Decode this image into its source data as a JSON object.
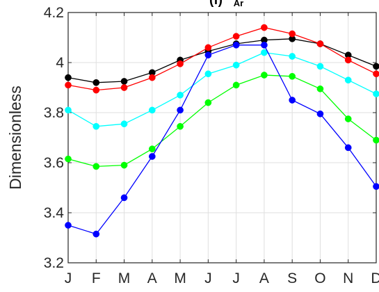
{
  "chart_data": {
    "type": "line",
    "title": "(f) ",
    "title_subscript": "Ar",
    "xlabel": "",
    "ylabel": "Dimensionless",
    "categories": [
      "J",
      "F",
      "M",
      "A",
      "M",
      "J",
      "J",
      "A",
      "S",
      "O",
      "N",
      "D"
    ],
    "ylim": [
      3.2,
      4.2
    ],
    "yticks": [
      "3.2",
      "3.4",
      "3.6",
      "3.8",
      "4",
      "4.2"
    ],
    "grid": true,
    "series": [
      {
        "color": "#000000",
        "values": [
          3.94,
          3.92,
          3.925,
          3.96,
          4.01,
          4.045,
          4.075,
          4.09,
          4.095,
          4.075,
          4.03,
          3.985
        ]
      },
      {
        "color": "#ff0000",
        "values": [
          3.91,
          3.89,
          3.9,
          3.94,
          3.995,
          4.06,
          4.105,
          4.14,
          4.115,
          4.075,
          4.01,
          3.955
        ]
      },
      {
        "color": "#00ffff",
        "values": [
          3.81,
          3.745,
          3.755,
          3.81,
          3.87,
          3.955,
          3.99,
          4.04,
          4.025,
          3.985,
          3.93,
          3.875
        ]
      },
      {
        "color": "#00ff00",
        "values": [
          3.615,
          3.585,
          3.59,
          3.655,
          3.745,
          3.84,
          3.91,
          3.95,
          3.945,
          3.895,
          3.775,
          3.69
        ]
      },
      {
        "color": "#0000ff",
        "values": [
          3.35,
          3.315,
          3.46,
          3.625,
          3.81,
          4.03,
          4.07,
          4.07,
          3.85,
          3.795,
          3.66,
          3.505
        ]
      }
    ]
  }
}
